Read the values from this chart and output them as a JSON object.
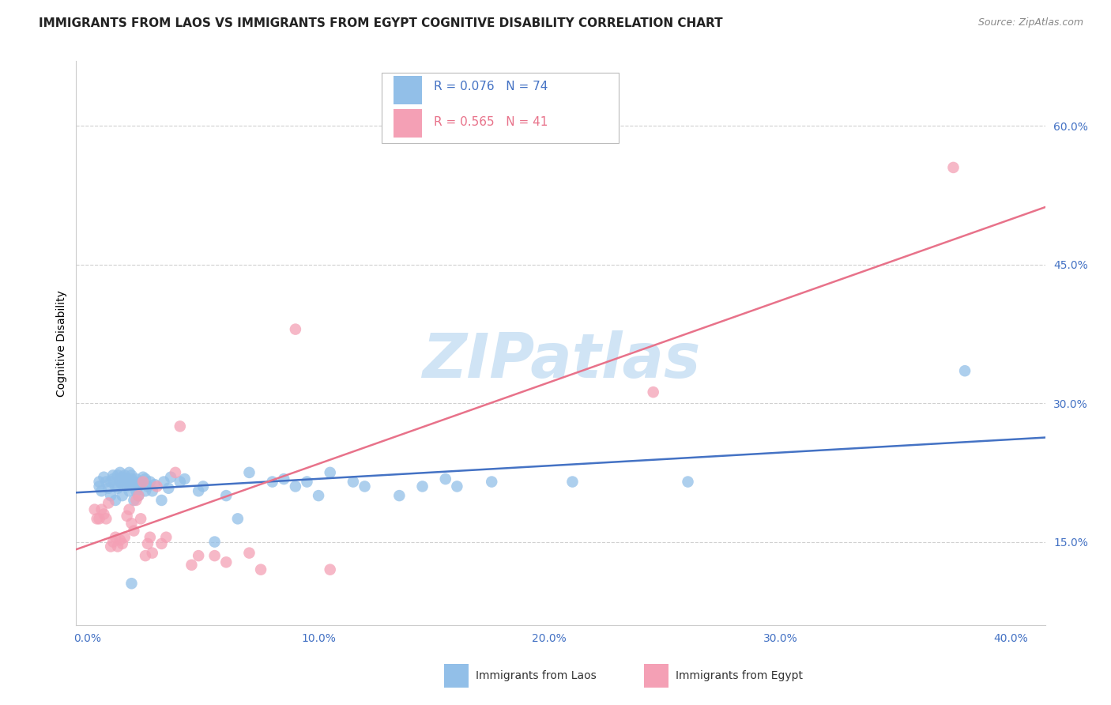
{
  "title": "IMMIGRANTS FROM LAOS VS IMMIGRANTS FROM EGYPT COGNITIVE DISABILITY CORRELATION CHART",
  "source": "Source: ZipAtlas.com",
  "xlabel_ticks": [
    "0.0%",
    "",
    "",
    "",
    "",
    "10.0%",
    "",
    "",
    "",
    "",
    "20.0%",
    "",
    "",
    "",
    "",
    "30.0%",
    "",
    "",
    "",
    "",
    "40.0%"
  ],
  "xlabel_vals": [
    0.0,
    0.02,
    0.04,
    0.06,
    0.08,
    0.1,
    0.12,
    0.14,
    0.16,
    0.18,
    0.2,
    0.22,
    0.24,
    0.26,
    0.28,
    0.3,
    0.32,
    0.34,
    0.36,
    0.38,
    0.4
  ],
  "xlabel_show": [
    "0.0%",
    "10.0%",
    "20.0%",
    "30.0%",
    "40.0%"
  ],
  "xlabel_show_vals": [
    0.0,
    0.1,
    0.2,
    0.3,
    0.4
  ],
  "ylabel_ticks": [
    "15.0%",
    "30.0%",
    "45.0%",
    "60.0%"
  ],
  "ylabel_vals": [
    0.15,
    0.3,
    0.45,
    0.6
  ],
  "xlim": [
    -0.005,
    0.415
  ],
  "ylim": [
    0.06,
    0.67
  ],
  "laos_R": 0.076,
  "laos_N": 74,
  "egypt_R": 0.565,
  "egypt_N": 41,
  "laos_color": "#92bfe8",
  "egypt_color": "#f4a0b5",
  "laos_line_color": "#4472c4",
  "egypt_line_color": "#e8728a",
  "watermark": "ZIPatlas",
  "watermark_color": "#d0e4f5",
  "legend_label_1": "Immigrants from Laos",
  "legend_label_2": "Immigrants from Egypt",
  "laos_x": [
    0.005,
    0.005,
    0.006,
    0.007,
    0.008,
    0.009,
    0.01,
    0.01,
    0.011,
    0.011,
    0.012,
    0.012,
    0.013,
    0.013,
    0.014,
    0.014,
    0.015,
    0.015,
    0.015,
    0.016,
    0.016,
    0.017,
    0.017,
    0.018,
    0.018,
    0.018,
    0.019,
    0.019,
    0.019,
    0.019,
    0.02,
    0.02,
    0.02,
    0.021,
    0.021,
    0.022,
    0.022,
    0.023,
    0.023,
    0.024,
    0.025,
    0.025,
    0.026,
    0.027,
    0.028,
    0.029,
    0.032,
    0.033,
    0.035,
    0.036,
    0.04,
    0.042,
    0.048,
    0.05,
    0.055,
    0.06,
    0.065,
    0.07,
    0.08,
    0.085,
    0.09,
    0.095,
    0.1,
    0.105,
    0.115,
    0.12,
    0.135,
    0.145,
    0.155,
    0.16,
    0.175,
    0.21,
    0.26,
    0.38
  ],
  "laos_y": [
    0.21,
    0.215,
    0.205,
    0.22,
    0.215,
    0.208,
    0.2,
    0.215,
    0.218,
    0.222,
    0.195,
    0.21,
    0.208,
    0.222,
    0.225,
    0.215,
    0.2,
    0.212,
    0.22,
    0.215,
    0.222,
    0.21,
    0.218,
    0.205,
    0.215,
    0.225,
    0.212,
    0.218,
    0.222,
    0.105,
    0.195,
    0.21,
    0.215,
    0.205,
    0.218,
    0.2,
    0.21,
    0.215,
    0.212,
    0.22,
    0.205,
    0.218,
    0.21,
    0.215,
    0.205,
    0.212,
    0.195,
    0.215,
    0.208,
    0.22,
    0.215,
    0.218,
    0.205,
    0.21,
    0.15,
    0.2,
    0.175,
    0.225,
    0.215,
    0.218,
    0.21,
    0.215,
    0.2,
    0.225,
    0.215,
    0.21,
    0.2,
    0.21,
    0.218,
    0.21,
    0.215,
    0.215,
    0.215,
    0.335
  ],
  "egypt_x": [
    0.003,
    0.004,
    0.005,
    0.006,
    0.007,
    0.008,
    0.009,
    0.01,
    0.011,
    0.012,
    0.013,
    0.014,
    0.015,
    0.016,
    0.017,
    0.018,
    0.019,
    0.02,
    0.021,
    0.022,
    0.023,
    0.024,
    0.025,
    0.026,
    0.027,
    0.028,
    0.03,
    0.032,
    0.034,
    0.038,
    0.04,
    0.045,
    0.048,
    0.055,
    0.06,
    0.07,
    0.075,
    0.09,
    0.105,
    0.245,
    0.375
  ],
  "egypt_y": [
    0.185,
    0.175,
    0.175,
    0.185,
    0.18,
    0.175,
    0.192,
    0.145,
    0.15,
    0.155,
    0.145,
    0.152,
    0.148,
    0.155,
    0.178,
    0.185,
    0.17,
    0.162,
    0.195,
    0.2,
    0.175,
    0.215,
    0.135,
    0.148,
    0.155,
    0.138,
    0.21,
    0.148,
    0.155,
    0.225,
    0.275,
    0.125,
    0.135,
    0.135,
    0.128,
    0.138,
    0.12,
    0.38,
    0.12,
    0.312,
    0.555
  ],
  "background_color": "#ffffff",
  "grid_color": "#d0d0d0",
  "title_fontsize": 11,
  "axis_label_fontsize": 10,
  "tick_fontsize": 10,
  "tick_color": "#4472c4"
}
